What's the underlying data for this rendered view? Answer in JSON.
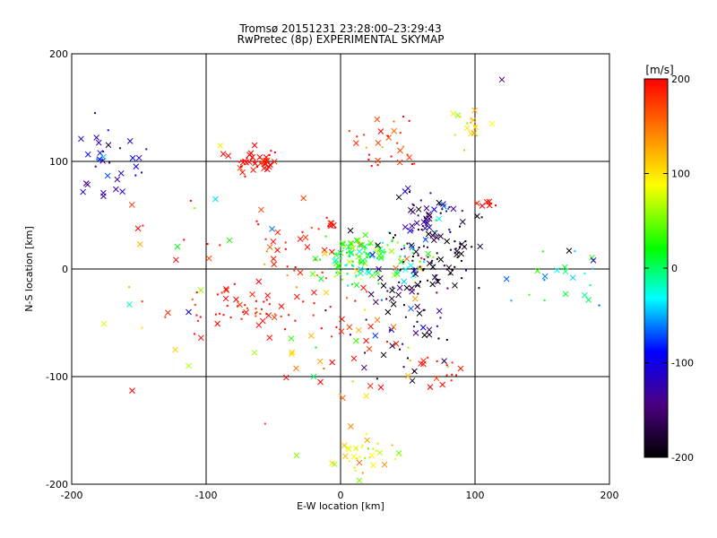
{
  "chart_data": {
    "type": "scatter",
    "title": "Tromsø 20151231 23:28:00–23:29:43",
    "subtitle": "RwPretec (8p) EXPERIMENTAL SKYMAP",
    "xlabel": "E-W location [km]",
    "ylabel": "N-S location [km]",
    "xlim": [
      -200,
      200
    ],
    "ylim": [
      -200,
      200
    ],
    "xticks": [
      "-200",
      "-100",
      "0",
      "100",
      "200"
    ],
    "yticks": [
      "-200",
      "-100",
      "0",
      "100",
      "200"
    ],
    "grid": true,
    "colorbar": {
      "label": "[m/s]",
      "range": [
        -200,
        200
      ],
      "ticks": [
        "-200",
        "-100",
        "0",
        "100",
        "200"
      ],
      "colormap": [
        "#000000",
        "#4b0082",
        "#0000ff",
        "#00ffff",
        "#00ff00",
        "#ffff00",
        "#ff8000",
        "#ff0000"
      ]
    },
    "clusters": [
      {
        "x": -65,
        "y": 100,
        "sx": 10,
        "sy": 6,
        "n": 45,
        "v": 200,
        "sv": 15
      },
      {
        "x": -12,
        "y": 42,
        "sx": 6,
        "sy": 3,
        "n": 8,
        "v": 190,
        "sv": 20
      },
      {
        "x": 32,
        "y": 118,
        "sx": 12,
        "sy": 15,
        "n": 30,
        "v": 175,
        "sv": 30
      },
      {
        "x": 97,
        "y": 135,
        "sx": 8,
        "sy": 7,
        "n": 18,
        "v": 110,
        "sv": 30
      },
      {
        "x": 108,
        "y": 62,
        "sx": 3,
        "sy": 3,
        "n": 7,
        "v": 190,
        "sv": 10
      },
      {
        "x": -170,
        "y": 100,
        "sx": 18,
        "sy": 18,
        "n": 35,
        "v": -110,
        "sv": 25
      },
      {
        "x": -75,
        "y": -38,
        "sx": 22,
        "sy": 10,
        "n": 55,
        "v": 195,
        "sv": 15
      },
      {
        "x": -40,
        "y": 20,
        "sx": 20,
        "sy": 18,
        "n": 30,
        "v": 180,
        "sv": 40
      },
      {
        "x": 15,
        "y": 10,
        "sx": 15,
        "sy": 12,
        "n": 120,
        "v": 25,
        "sv": 40
      },
      {
        "x": 55,
        "y": 5,
        "sx": 10,
        "sy": 12,
        "n": 25,
        "v": 0,
        "sv": 80
      },
      {
        "x": 68,
        "y": 15,
        "sx": 18,
        "sy": 25,
        "n": 110,
        "v": -185,
        "sv": 25
      },
      {
        "x": 65,
        "y": 50,
        "sx": 10,
        "sy": 10,
        "n": 30,
        "v": -140,
        "sv": 60
      },
      {
        "x": 40,
        "y": -50,
        "sx": 22,
        "sy": 30,
        "n": 55,
        "v": -170,
        "sv": 50
      },
      {
        "x": 10,
        "y": -60,
        "sx": 25,
        "sy": 30,
        "n": 35,
        "v": 160,
        "sv": 60
      },
      {
        "x": 18,
        "y": -170,
        "sx": 12,
        "sy": 8,
        "n": 35,
        "v": 90,
        "sv": 25
      },
      {
        "x": 160,
        "y": -10,
        "sx": 25,
        "sy": 15,
        "n": 22,
        "v": -30,
        "sv": 40
      },
      {
        "x": -20,
        "y": -90,
        "sx": 25,
        "sy": 35,
        "n": 18,
        "v": 160,
        "sv": 60
      },
      {
        "x": 70,
        "y": -90,
        "sx": 15,
        "sy": 12,
        "n": 15,
        "v": 195,
        "sv": 15
      },
      {
        "x": -100,
        "y": 10,
        "sx": 40,
        "sy": 40,
        "n": 25,
        "v": 150,
        "sv": 80
      }
    ],
    "extra_points": [
      {
        "x": 120,
        "y": 176,
        "v": -150,
        "m": "x"
      },
      {
        "x": -155,
        "y": -113,
        "v": 200,
        "m": "x"
      },
      {
        "x": -157,
        "y": -33,
        "v": -20,
        "m": "x"
      },
      {
        "x": -113,
        "y": -90,
        "v": 70,
        "m": "x"
      },
      {
        "x": -113,
        "y": -40,
        "v": -110,
        "m": "x"
      },
      {
        "x": -93,
        "y": 65,
        "v": -40,
        "m": "x"
      },
      {
        "x": -123,
        "y": -75,
        "v": 110,
        "m": "x"
      },
      {
        "x": 188,
        "y": 8,
        "v": -120,
        "m": "x"
      },
      {
        "x": 170,
        "y": 17,
        "v": -190,
        "m": "x"
      },
      {
        "x": 30,
        "y": -110,
        "v": 200,
        "m": "x"
      },
      {
        "x": -20,
        "y": -100,
        "v": 0,
        "m": "x"
      },
      {
        "x": 55,
        "y": -95,
        "v": -190,
        "m": "x"
      }
    ]
  }
}
